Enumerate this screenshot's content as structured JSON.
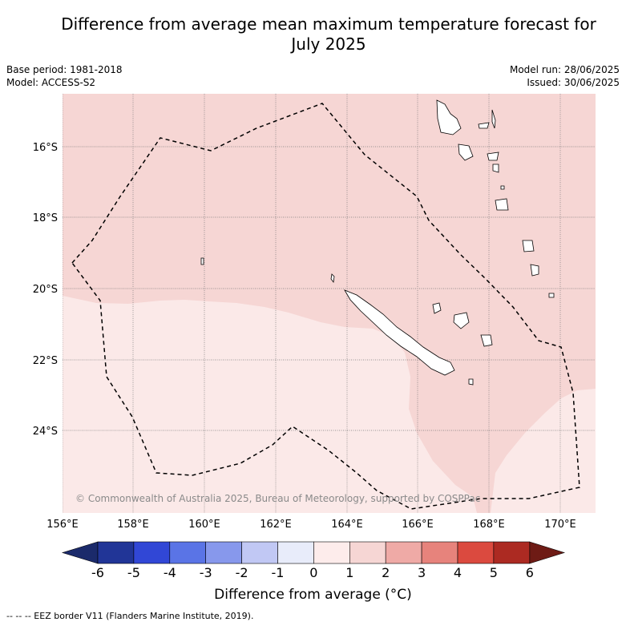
{
  "header": {
    "title_line1": "Difference from average mean maximum temperature forecast for",
    "title_line2": "July 2025",
    "base_period": "Base period: 1981-2018",
    "model": "Model: ACCESS-S2",
    "model_run": "Model run: 28/06/2025",
    "issued": "Issued: 30/06/2025"
  },
  "map": {
    "lat_labels": [
      "16°S",
      "18°S",
      "20°S",
      "22°S",
      "24°S"
    ],
    "lon_labels": [
      "156°E",
      "158°E",
      "160°E",
      "162°E",
      "164°E",
      "166°E",
      "168°E",
      "170°E"
    ],
    "copyright": "© Commonwealth of Australia 2025, Bureau of Meteorology, supported by COSPPac",
    "colors": {
      "anomaly_0_1": "#fbe9e8",
      "anomaly_1_2": "#f6d6d4",
      "eez_line": "#000000"
    }
  },
  "colorbar": {
    "ticks": [
      "-6",
      "-5",
      "-4",
      "-3",
      "-2",
      "-1",
      "0",
      "1",
      "2",
      "3",
      "4",
      "5",
      "6"
    ],
    "colors": [
      "#213597",
      "#3147d6",
      "#5a74e6",
      "#8798ec",
      "#c1c8f4",
      "#e8ecfa",
      "#fdeceb",
      "#f6d6d4",
      "#efaaa6",
      "#e7837c",
      "#db4a3f",
      "#ac2a22"
    ],
    "under_color": "#1b2a6b",
    "over_color": "#6e1b15",
    "label": "Difference from average (°C)"
  },
  "footnote": "-- -- -- EEZ border V11 (Flanders Marine Institute, 2019)."
}
